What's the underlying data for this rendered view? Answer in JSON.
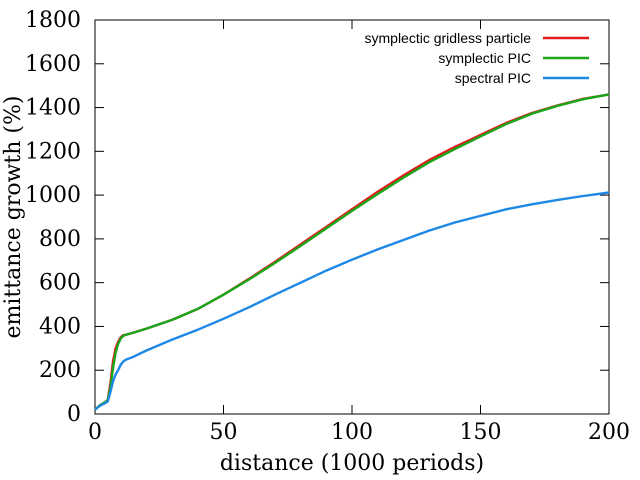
{
  "chart_data": {
    "type": "line",
    "title": "",
    "xlabel": "distance (1000 periods)",
    "ylabel": "emittance growth (%)",
    "xlim": [
      0,
      200
    ],
    "ylim": [
      0,
      1800
    ],
    "xticks": [
      0,
      50,
      100,
      150,
      200
    ],
    "yticks": [
      0,
      200,
      400,
      600,
      800,
      1000,
      1200,
      1400,
      1600,
      1800
    ],
    "grid": false,
    "legend_position": "top-right",
    "series": [
      {
        "name": "symplectic gridless particle",
        "color": "#e41a1c",
        "x": [
          0,
          2,
          4,
          5,
          6,
          7,
          8,
          9,
          10,
          11,
          12,
          15,
          20,
          30,
          40,
          50,
          60,
          70,
          80,
          90,
          100,
          110,
          120,
          130,
          140,
          150,
          160,
          170,
          180,
          190,
          200
        ],
        "y": [
          20,
          40,
          55,
          65,
          140,
          240,
          300,
          330,
          350,
          360,
          362,
          372,
          390,
          430,
          480,
          545,
          618,
          695,
          775,
          855,
          935,
          1015,
          1090,
          1160,
          1220,
          1275,
          1330,
          1375,
          1410,
          1440,
          1460
        ]
      },
      {
        "name": "symplectic PIC",
        "color": "#1aa51a",
        "x": [
          0,
          2,
          4,
          5,
          6,
          7,
          8,
          9,
          10,
          11,
          12,
          15,
          20,
          30,
          40,
          50,
          60,
          70,
          80,
          90,
          100,
          110,
          120,
          130,
          140,
          150,
          160,
          170,
          180,
          190,
          200
        ],
        "y": [
          20,
          40,
          55,
          65,
          120,
          210,
          280,
          320,
          345,
          357,
          362,
          372,
          390,
          430,
          480,
          545,
          615,
          690,
          768,
          848,
          928,
          1005,
          1080,
          1150,
          1210,
          1268,
          1325,
          1372,
          1408,
          1438,
          1460
        ]
      },
      {
        "name": "spectral PIC",
        "color": "#1e88e5",
        "x": [
          0,
          2,
          4,
          5,
          6,
          7,
          8,
          9,
          10,
          11,
          12,
          15,
          20,
          30,
          40,
          50,
          60,
          70,
          80,
          90,
          100,
          110,
          120,
          130,
          140,
          150,
          160,
          170,
          180,
          190,
          200
        ],
        "y": [
          20,
          38,
          50,
          58,
          100,
          150,
          180,
          200,
          225,
          240,
          248,
          262,
          290,
          340,
          385,
          435,
          488,
          545,
          600,
          655,
          705,
          752,
          795,
          838,
          875,
          905,
          935,
          958,
          978,
          996,
          1012
        ]
      }
    ]
  }
}
